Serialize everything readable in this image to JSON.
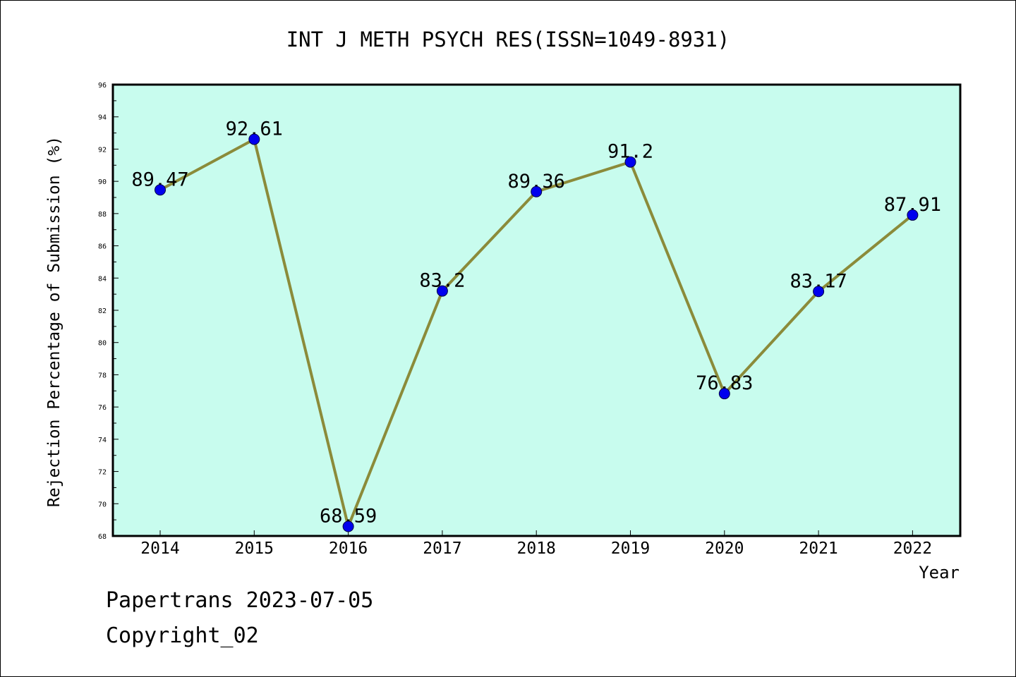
{
  "chart_data": {
    "type": "line",
    "title": "INT J METH PSYCH RES(ISSN=1049-8931)",
    "xlabel": "Year",
    "ylabel": "Rejection Percentage of Submission (%)",
    "categories": [
      "2014",
      "2015",
      "2016",
      "2017",
      "2018",
      "2019",
      "2020",
      "2021",
      "2022"
    ],
    "series": [
      {
        "values": [
          89.47,
          92.61,
          68.59,
          83.2,
          89.36,
          91.2,
          76.83,
          83.17,
          87.91
        ],
        "data_labels": [
          "89.47",
          "92.61",
          "68.59",
          "83.2",
          "89.36",
          "91.2",
          "76.83",
          "83.17",
          "87.91"
        ]
      }
    ],
    "ylim": [
      68,
      96
    ],
    "y_ticks": [
      "68",
      "70",
      "72",
      "74",
      "76",
      "78",
      "80",
      "82",
      "84",
      "86",
      "88",
      "90",
      "92",
      "94",
      "96"
    ],
    "grid": false,
    "legend": "none",
    "colors": {
      "plot_background": "#c8fcee",
      "line": "#8b8b3a",
      "marker": "#0000ee"
    }
  },
  "footer": {
    "line1": "Papertrans 2023-07-05",
    "line2": "Copyright_02"
  }
}
